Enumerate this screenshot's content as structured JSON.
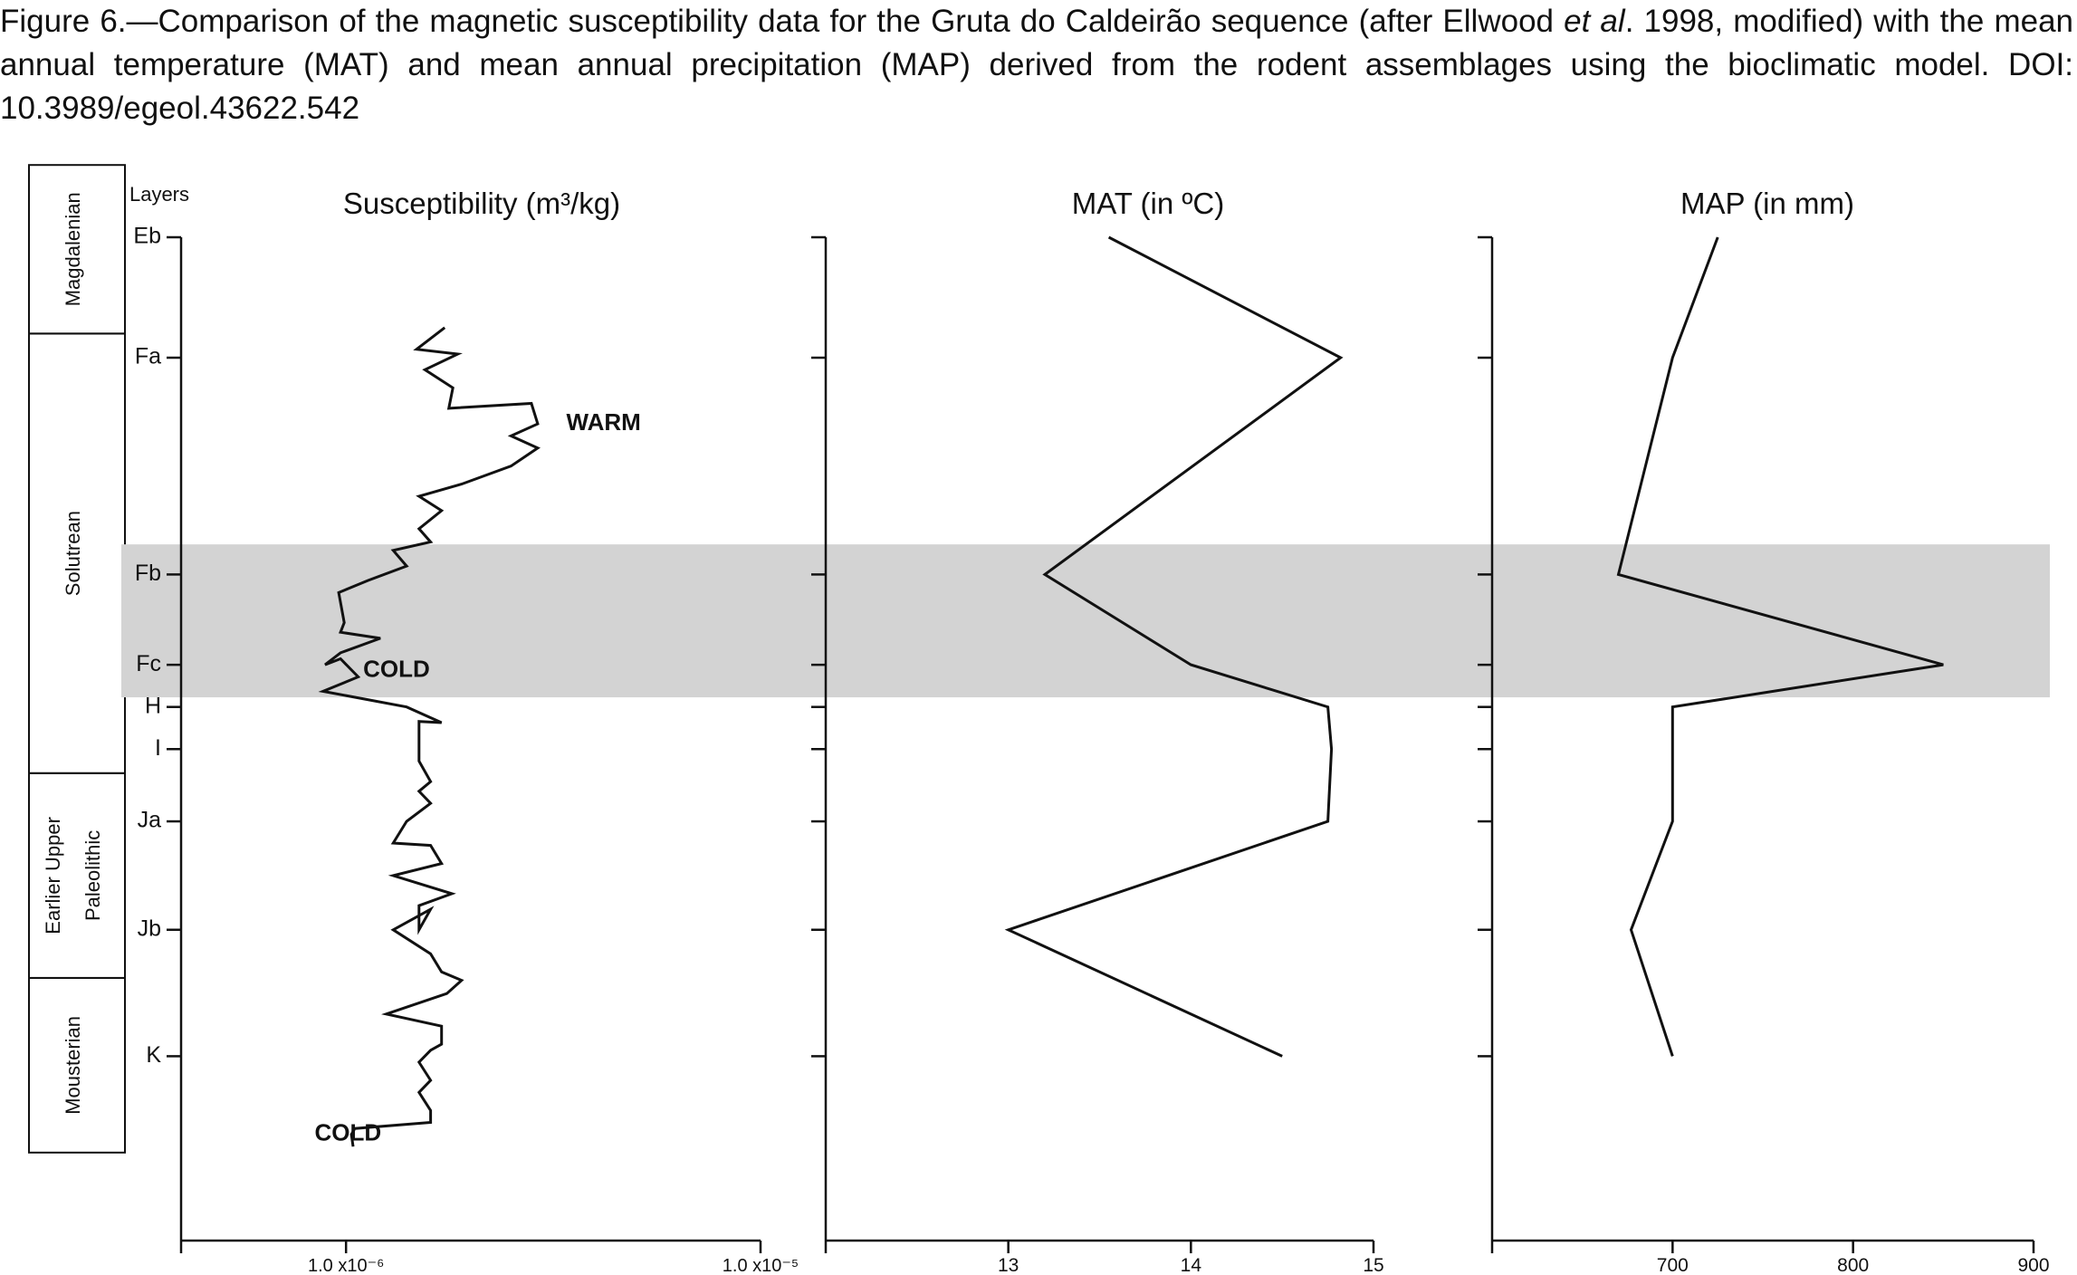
{
  "caption": {
    "part1": "Figure 6.—Comparison of the magnetic susceptibility data for the Gruta do Caldeirão sequence (after Ellwood ",
    "italic": "et al",
    "part2": ". 1998, modified) with the mean annual temperature (MAT) and mean annual precipitation (MAP) derived from the rodent assemblages using the bioclimatic model. DOI: 10.3989/egeol.43622.542"
  },
  "chart_data": [
    {
      "type": "line",
      "title": "Susceptibility (m³/kg)",
      "xscale": "log",
      "xlim": [
        4e-07,
        1e-05
      ],
      "x_ticks": [
        {
          "value": 1e-06,
          "label": "1.0 x10⁻⁶"
        },
        {
          "value": 1e-05,
          "label": "1.0 x10⁻⁵"
        }
      ],
      "layers_axis": {
        "title": "Layers",
        "ticks": [
          {
            "label": "Eb",
            "depth": 0.0
          },
          {
            "label": "Fa",
            "depth": 1.0
          },
          {
            "label": "Fb",
            "depth": 2.8
          },
          {
            "label": "Fc",
            "depth": 3.55
          },
          {
            "label": "H",
            "depth": 3.9
          },
          {
            "label": "I",
            "depth": 4.25
          },
          {
            "label": "Ja",
            "depth": 4.85
          },
          {
            "label": "Jb",
            "depth": 5.75
          },
          {
            "label": "K",
            "depth": 6.8
          }
        ]
      },
      "series": [
        {
          "points": [
            {
              "depth": 0.75,
              "x": 1.73e-06
            },
            {
              "depth": 0.93,
              "x": 1.48e-06
            },
            {
              "depth": 0.97,
              "x": 1.86e-06
            },
            {
              "depth": 1.1,
              "x": 1.55e-06
            },
            {
              "depth": 1.25,
              "x": 1.81e-06
            },
            {
              "depth": 1.42,
              "x": 1.77e-06
            },
            {
              "depth": 1.38,
              "x": 2.8e-06
            },
            {
              "depth": 1.55,
              "x": 2.9e-06
            },
            {
              "depth": 1.65,
              "x": 2.5e-06
            },
            {
              "depth": 1.75,
              "x": 2.9e-06
            },
            {
              "depth": 1.9,
              "x": 2.5e-06
            },
            {
              "depth": 2.05,
              "x": 1.9e-06
            },
            {
              "depth": 2.15,
              "x": 1.5e-06
            },
            {
              "depth": 2.27,
              "x": 1.7e-06
            },
            {
              "depth": 2.42,
              "x": 1.5e-06
            },
            {
              "depth": 2.53,
              "x": 1.6e-06
            },
            {
              "depth": 2.6,
              "x": 1.3e-06
            },
            {
              "depth": 2.73,
              "x": 1.4e-06
            },
            {
              "depth": 2.85,
              "x": 1.13e-06
            },
            {
              "depth": 2.95,
              "x": 9.6e-07
            },
            {
              "depth": 3.2,
              "x": 9.9e-07
            },
            {
              "depth": 3.28,
              "x": 9.7e-07
            },
            {
              "depth": 3.33,
              "x": 1.21e-06
            },
            {
              "depth": 3.45,
              "x": 9.7e-07
            },
            {
              "depth": 3.55,
              "x": 8.9e-07
            },
            {
              "depth": 3.5,
              "x": 9.7e-07
            },
            {
              "depth": 3.65,
              "x": 1.07e-06
            },
            {
              "depth": 3.77,
              "x": 8.8e-07
            },
            {
              "depth": 3.9,
              "x": 1.4e-06
            },
            {
              "depth": 4.03,
              "x": 1.7e-06
            },
            {
              "depth": 4.02,
              "x": 1.5e-06
            },
            {
              "depth": 4.35,
              "x": 1.5e-06
            },
            {
              "depth": 4.52,
              "x": 1.6e-06
            },
            {
              "depth": 4.6,
              "x": 1.5e-06
            },
            {
              "depth": 4.7,
              "x": 1.6e-06
            },
            {
              "depth": 4.85,
              "x": 1.4e-06
            },
            {
              "depth": 5.03,
              "x": 1.3e-06
            },
            {
              "depth": 5.05,
              "x": 1.6e-06
            },
            {
              "depth": 5.2,
              "x": 1.7e-06
            },
            {
              "depth": 5.3,
              "x": 1.3e-06
            },
            {
              "depth": 5.45,
              "x": 1.8e-06
            },
            {
              "depth": 5.55,
              "x": 1.5e-06
            },
            {
              "depth": 5.75,
              "x": 1.5e-06
            },
            {
              "depth": 5.58,
              "x": 1.6e-06
            },
            {
              "depth": 5.75,
              "x": 1.3e-06
            },
            {
              "depth": 5.95,
              "x": 1.6e-06
            },
            {
              "depth": 6.1,
              "x": 1.7e-06
            },
            {
              "depth": 6.17,
              "x": 1.9e-06
            },
            {
              "depth": 6.28,
              "x": 1.75e-06
            },
            {
              "depth": 6.45,
              "x": 1.25e-06
            },
            {
              "depth": 6.55,
              "x": 1.7e-06
            },
            {
              "depth": 6.7,
              "x": 1.7e-06
            },
            {
              "depth": 6.75,
              "x": 1.6e-06
            },
            {
              "depth": 6.85,
              "x": 1.5e-06
            },
            {
              "depth": 7.0,
              "x": 1.6e-06
            },
            {
              "depth": 7.1,
              "x": 1.5e-06
            },
            {
              "depth": 7.25,
              "x": 1.6e-06
            },
            {
              "depth": 7.35,
              "x": 1.6e-06
            },
            {
              "depth": 7.4,
              "x": 1.05e-06
            },
            {
              "depth": 7.45,
              "x": 1.03e-06
            },
            {
              "depth": 7.55,
              "x": 1.04e-06
            }
          ]
        }
      ],
      "annotations": [
        {
          "text": "WARM",
          "depth": 1.55,
          "x": 3.4e-06
        },
        {
          "text": "COLD",
          "depth": 3.6,
          "x": 1.1e-06
        },
        {
          "text": "COLD",
          "depth": 7.45,
          "x": 8.4e-07
        }
      ]
    },
    {
      "type": "line",
      "title": "MAT (in ºC)",
      "xlim": [
        12,
        15
      ],
      "x_ticks": [
        13,
        14,
        15
      ],
      "series": [
        {
          "points": [
            {
              "layer": "Eb",
              "x": 13.55
            },
            {
              "layer": "Fa",
              "x": 14.82
            },
            {
              "layer": "Fb",
              "x": 13.2
            },
            {
              "layer": "Fc",
              "x": 14.0
            },
            {
              "layer": "H",
              "x": 14.75
            },
            {
              "layer": "I",
              "x": 14.77
            },
            {
              "layer": "Ja",
              "x": 14.75
            },
            {
              "layer": "Jb",
              "x": 13.0
            },
            {
              "layer": "K",
              "x": 14.5
            }
          ]
        }
      ]
    },
    {
      "type": "line",
      "title": "MAP (in mm)",
      "xlim": [
        600,
        900
      ],
      "x_ticks": [
        700,
        800,
        900
      ],
      "series": [
        {
          "points": [
            {
              "layer": "Eb",
              "x": 725
            },
            {
              "layer": "Fa",
              "x": 700
            },
            {
              "layer": "Fb",
              "x": 670
            },
            {
              "layer": "Fc",
              "x": 850
            },
            {
              "layer": "H",
              "x": 700
            },
            {
              "layer": "I",
              "x": 700
            },
            {
              "layer": "Ja",
              "x": 700
            },
            {
              "layer": "Jb",
              "x": 677
            },
            {
              "layer": "K",
              "x": 700
            }
          ]
        }
      ]
    }
  ],
  "periods": [
    {
      "label": "Magdalenian",
      "lines": [
        "Magdalenian"
      ],
      "from": -0.6,
      "to": 0.8
    },
    {
      "label": "Solutrean",
      "lines": [
        "Solutrean"
      ],
      "from": 0.8,
      "to": 4.45
    },
    {
      "label": "Earlier Upper Paleolithic",
      "lines": [
        "Earlier Upper",
        "Paleolithic"
      ],
      "from": 4.45,
      "to": 6.15
    },
    {
      "label": "Mousterian",
      "lines": [
        "Mousterian"
      ],
      "from": 6.15,
      "to": 7.6
    }
  ],
  "highlight_band": {
    "from": 2.55,
    "to": 3.82,
    "color": "#d3d3d3"
  },
  "colors": {
    "line": "#111111",
    "band_line": "#555555"
  }
}
